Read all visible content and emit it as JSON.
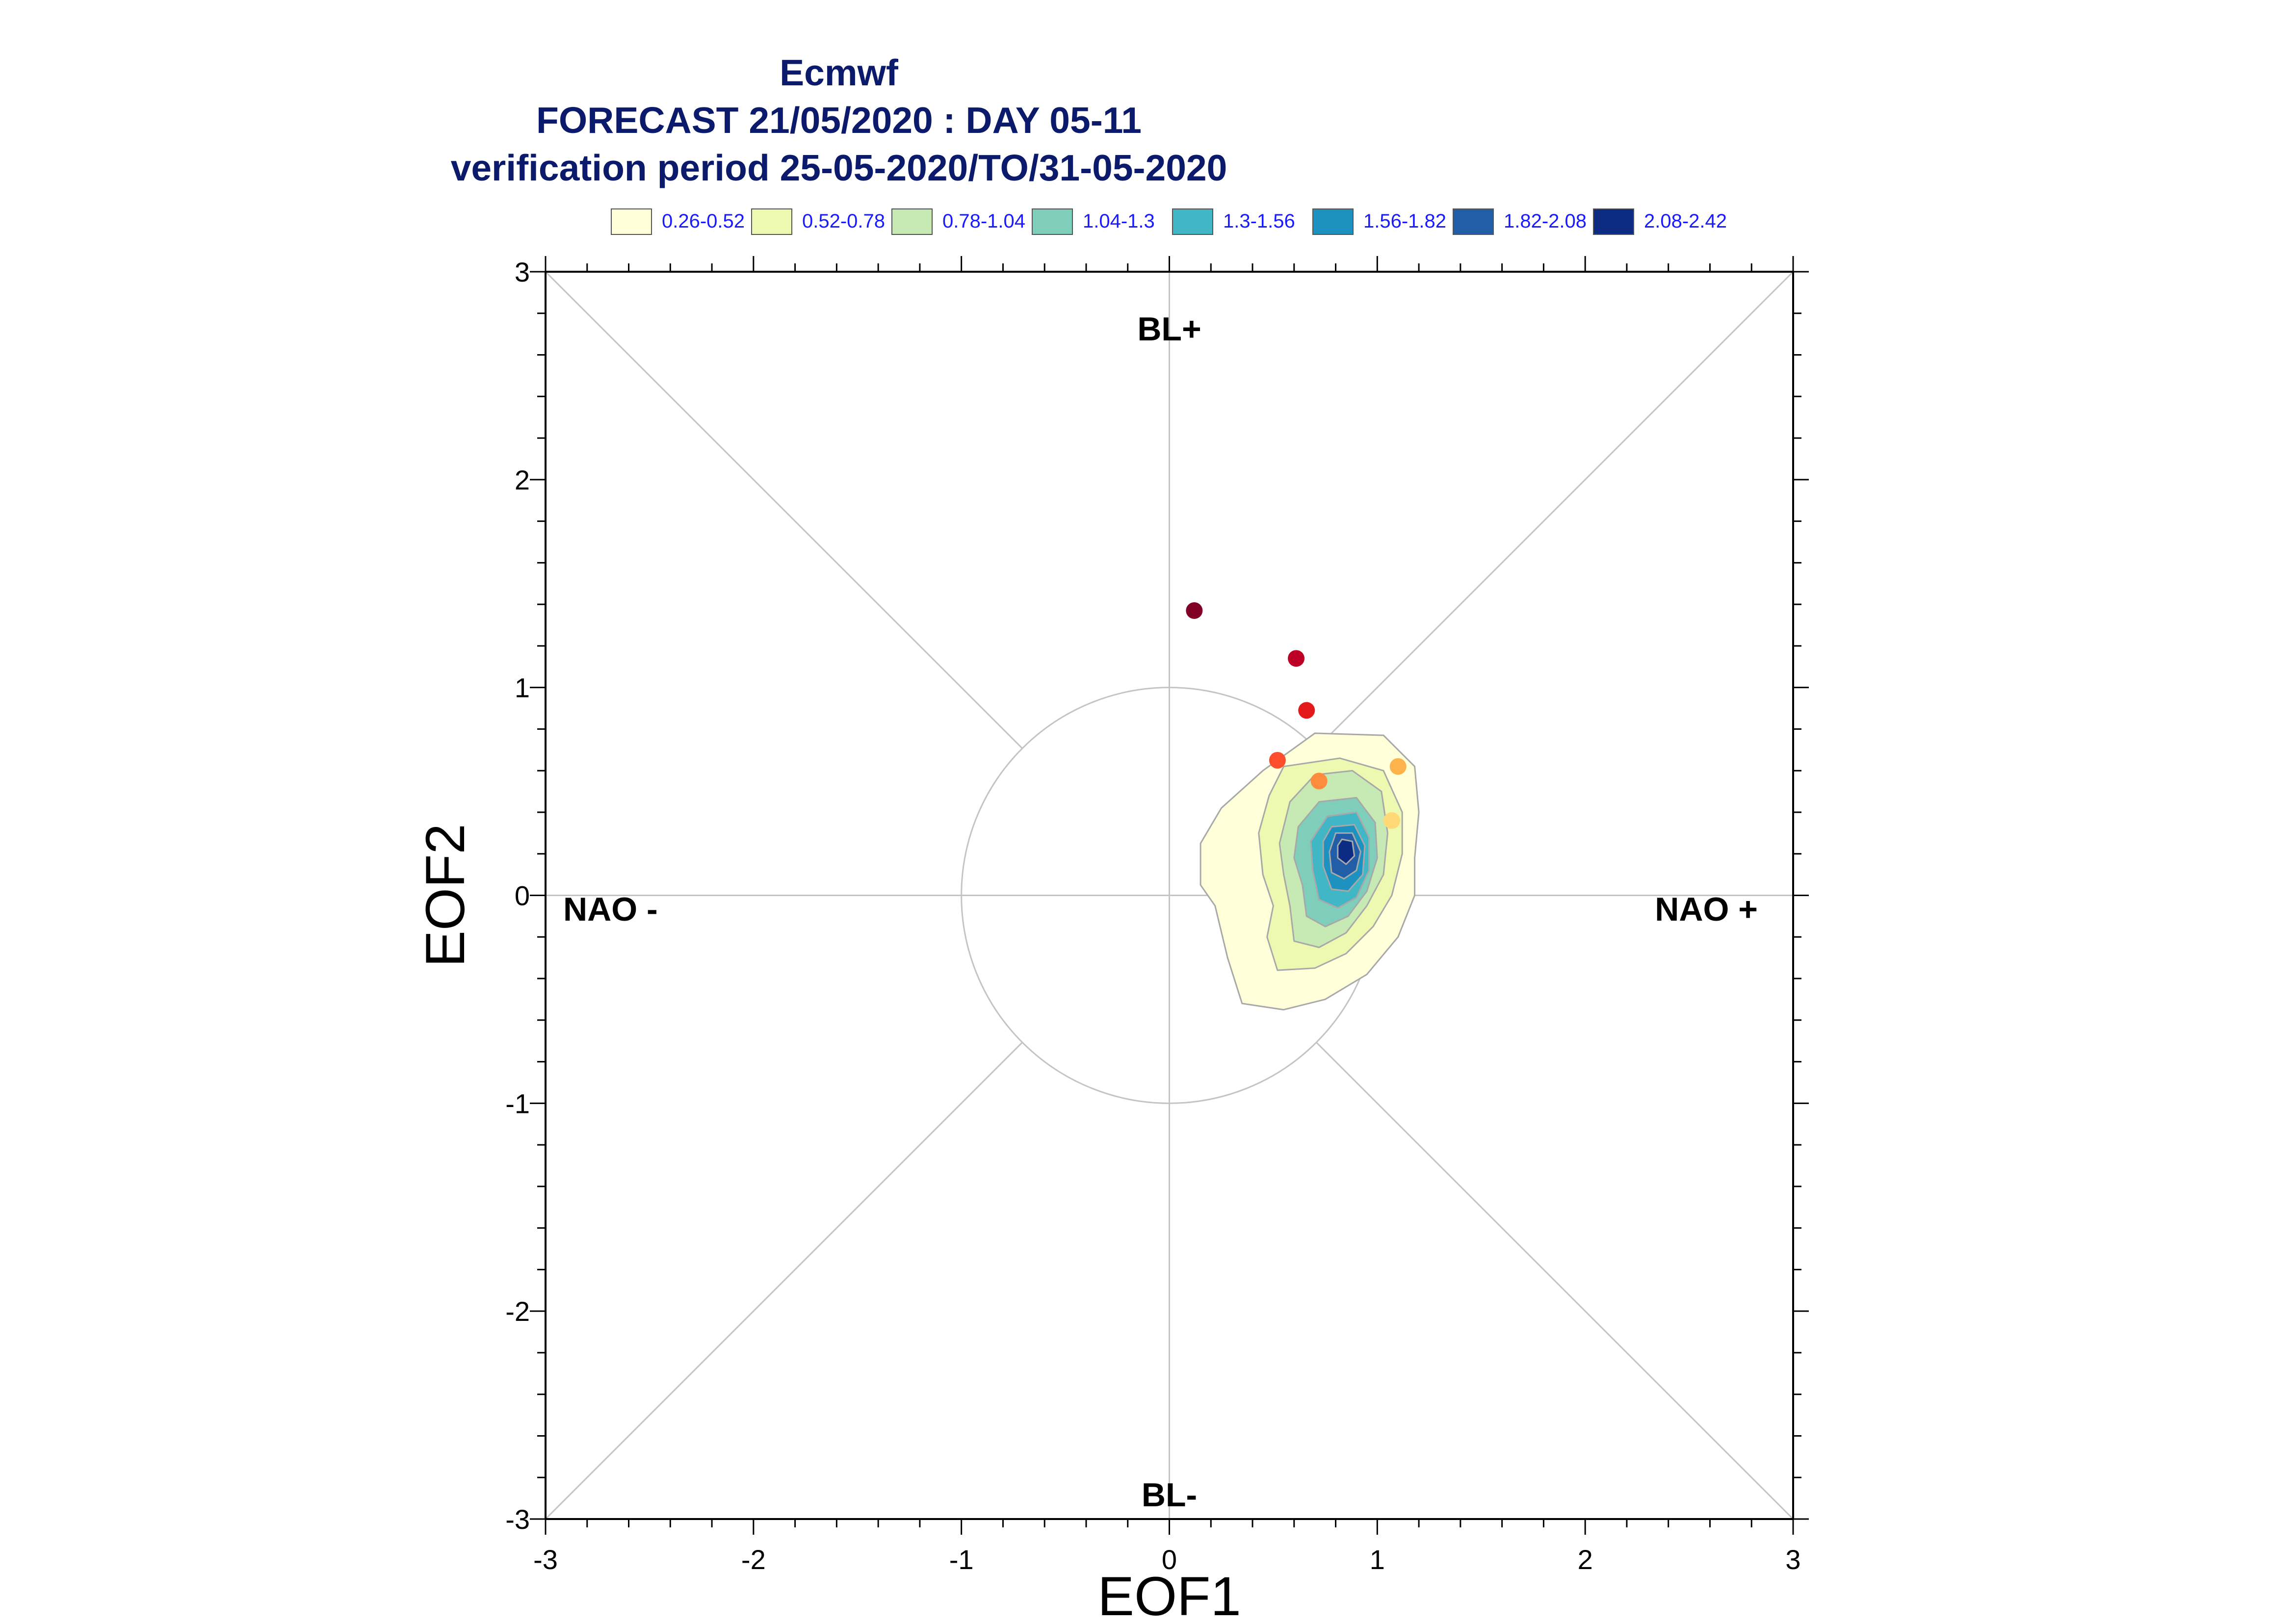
{
  "title": {
    "line1": "Ecmwf",
    "line2": "FORECAST 21/05/2020 : DAY 05-11",
    "line3": "verification period 25-05-2020/TO/31-05-2020"
  },
  "legend": [
    {
      "label": "0.26-0.52",
      "color": "#ffffd9"
    },
    {
      "label": "0.52-0.78",
      "color": "#edf8b1"
    },
    {
      "label": "0.78-1.04",
      "color": "#c7e9b4"
    },
    {
      "label": "1.04-1.3",
      "color": "#7fcdbb"
    },
    {
      "label": "1.3-1.56",
      "color": "#41b6c4"
    },
    {
      "label": "1.56-1.82",
      "color": "#1d91c0"
    },
    {
      "label": "1.82-2.08",
      "color": "#225ea8"
    },
    {
      "label": "2.08-2.42",
      "color": "#0c2c84"
    }
  ],
  "regimes": {
    "top": "BL+",
    "bottom": "BL-",
    "left": "NAO -",
    "right": "NAO +"
  },
  "chart_data": {
    "type": "scatter",
    "xlabel": "EOF1",
    "ylabel": "EOF2",
    "xlim": [
      -3,
      3
    ],
    "ylim": [
      -3,
      3
    ],
    "xticks": [
      "-3",
      "-2",
      "-1",
      "0",
      "1",
      "2",
      "3"
    ],
    "yticks": [
      "-3",
      "-2",
      "-1",
      "0",
      "1",
      "2",
      "3"
    ],
    "unit_circle_radius": 1,
    "points": [
      {
        "x": 0.12,
        "y": 1.37,
        "color": "#800026"
      },
      {
        "x": 0.61,
        "y": 1.14,
        "color": "#bd0026"
      },
      {
        "x": 0.66,
        "y": 0.89,
        "color": "#e31a1c"
      },
      {
        "x": 0.52,
        "y": 0.65,
        "color": "#fc4e2a"
      },
      {
        "x": 0.72,
        "y": 0.55,
        "color": "#fd8d3c"
      },
      {
        "x": 1.1,
        "y": 0.62,
        "color": "#feb24c"
      },
      {
        "x": 1.07,
        "y": 0.36,
        "color": "#fed976"
      }
    ],
    "density_contours": [
      {
        "level": "0.26-0.52",
        "color": "#ffffd9",
        "polygon": [
          [
            0.7,
            0.78
          ],
          [
            1.03,
            0.77
          ],
          [
            1.18,
            0.62
          ],
          [
            1.2,
            0.4
          ],
          [
            1.18,
            0.18
          ],
          [
            1.18,
            0.0
          ],
          [
            1.1,
            -0.2
          ],
          [
            0.95,
            -0.38
          ],
          [
            0.75,
            -0.5
          ],
          [
            0.55,
            -0.55
          ],
          [
            0.35,
            -0.52
          ],
          [
            0.28,
            -0.3
          ],
          [
            0.22,
            -0.05
          ],
          [
            0.15,
            0.05
          ],
          [
            0.15,
            0.25
          ],
          [
            0.25,
            0.42
          ],
          [
            0.45,
            0.6
          ]
        ]
      },
      {
        "level": "0.52-0.78",
        "color": "#edf8b1",
        "polygon": [
          [
            0.55,
            0.62
          ],
          [
            0.82,
            0.66
          ],
          [
            1.03,
            0.6
          ],
          [
            1.12,
            0.4
          ],
          [
            1.12,
            0.2
          ],
          [
            1.07,
            0.0
          ],
          [
            0.98,
            -0.15
          ],
          [
            0.85,
            -0.28
          ],
          [
            0.7,
            -0.35
          ],
          [
            0.52,
            -0.36
          ],
          [
            0.47,
            -0.2
          ],
          [
            0.5,
            -0.05
          ],
          [
            0.45,
            0.1
          ],
          [
            0.43,
            0.3
          ],
          [
            0.48,
            0.48
          ]
        ]
      },
      {
        "level": "0.78-1.04",
        "color": "#c7e9b4",
        "polygon": [
          [
            0.7,
            0.58
          ],
          [
            0.88,
            0.6
          ],
          [
            1.02,
            0.5
          ],
          [
            1.05,
            0.3
          ],
          [
            1.03,
            0.1
          ],
          [
            0.95,
            -0.05
          ],
          [
            0.85,
            -0.18
          ],
          [
            0.72,
            -0.25
          ],
          [
            0.6,
            -0.22
          ],
          [
            0.58,
            -0.05
          ],
          [
            0.55,
            0.1
          ],
          [
            0.53,
            0.25
          ],
          [
            0.58,
            0.45
          ]
        ]
      },
      {
        "level": "1.04-1.3",
        "color": "#7fcdbb",
        "polygon": [
          [
            0.72,
            0.45
          ],
          [
            0.9,
            0.47
          ],
          [
            0.99,
            0.35
          ],
          [
            1.0,
            0.18
          ],
          [
            0.95,
            0.02
          ],
          [
            0.86,
            -0.1
          ],
          [
            0.75,
            -0.15
          ],
          [
            0.66,
            -0.1
          ],
          [
            0.64,
            0.05
          ],
          [
            0.6,
            0.18
          ],
          [
            0.62,
            0.33
          ]
        ]
      },
      {
        "level": "1.3-1.56",
        "color": "#41b6c4",
        "polygon": [
          [
            0.76,
            0.38
          ],
          [
            0.9,
            0.4
          ],
          [
            0.96,
            0.28
          ],
          [
            0.96,
            0.12
          ],
          [
            0.9,
            -0.01
          ],
          [
            0.81,
            -0.06
          ],
          [
            0.72,
            -0.02
          ],
          [
            0.69,
            0.12
          ],
          [
            0.68,
            0.26
          ]
        ]
      },
      {
        "level": "1.56-1.82",
        "color": "#1d91c0",
        "polygon": [
          [
            0.78,
            0.33
          ],
          [
            0.89,
            0.34
          ],
          [
            0.94,
            0.24
          ],
          [
            0.93,
            0.1
          ],
          [
            0.86,
            0.02
          ],
          [
            0.78,
            0.03
          ],
          [
            0.74,
            0.14
          ],
          [
            0.74,
            0.26
          ]
        ]
      },
      {
        "level": "1.82-2.08",
        "color": "#225ea8",
        "polygon": [
          [
            0.8,
            0.3
          ],
          [
            0.88,
            0.3
          ],
          [
            0.92,
            0.21
          ],
          [
            0.9,
            0.12
          ],
          [
            0.84,
            0.08
          ],
          [
            0.78,
            0.11
          ],
          [
            0.77,
            0.21
          ]
        ]
      },
      {
        "level": "2.08-2.42",
        "color": "#0c2c84",
        "polygon": [
          [
            0.83,
            0.27
          ],
          [
            0.88,
            0.26
          ],
          [
            0.89,
            0.19
          ],
          [
            0.85,
            0.15
          ],
          [
            0.81,
            0.18
          ],
          [
            0.81,
            0.24
          ]
        ]
      }
    ]
  }
}
